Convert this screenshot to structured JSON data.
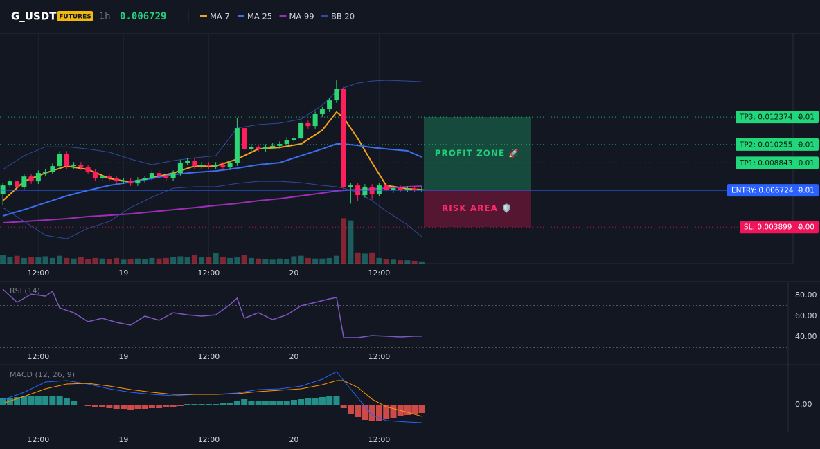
{
  "header": {
    "symbol": "G_USDT",
    "badge": "FUTURES",
    "interval": "1h",
    "price": "0.006729"
  },
  "chart_data": [
    {
      "type": "candlestick",
      "xlim": [
        -0.4,
        111.3
      ],
      "ylim": [
        0.00109,
        0.01882
      ],
      "xticks": [
        {
          "value": 5,
          "label": "12:00"
        },
        {
          "value": 17,
          "label": "19"
        },
        {
          "value": 29,
          "label": "12:00"
        },
        {
          "value": 41,
          "label": "20"
        },
        {
          "value": 53,
          "label": "12:00"
        }
      ],
      "open": [
        0.00646,
        0.0071,
        0.00742,
        0.007,
        0.00779,
        0.00742,
        0.00806,
        0.00817,
        0.00859,
        0.00955,
        0.00859,
        0.0087,
        0.00849,
        0.00817,
        0.00764,
        0.00779,
        0.00764,
        0.00742,
        0.00745,
        0.00726,
        0.00753,
        0.00764,
        0.00806,
        0.00779,
        0.00764,
        0.00806,
        0.00886,
        0.00902,
        0.00859,
        0.0087,
        0.00859,
        0.0087,
        0.00849,
        0.00881,
        0.01152,
        0.00992,
        0.01008,
        0.00992,
        0.01008,
        0.01015,
        0.0103,
        0.01062,
        0.01072,
        0.0119,
        0.01168,
        0.01259,
        0.01296,
        0.01365,
        0.01456,
        0.007,
        0.0071,
        0.00636,
        0.007,
        0.00646,
        0.0071,
        0.00673,
        0.00689,
        0.00678,
        0.00684,
        0.00678
      ],
      "high": [
        0.0073,
        0.00762,
        0.00762,
        0.00799,
        0.00799,
        0.00826,
        0.00837,
        0.00879,
        0.00975,
        0.00975,
        0.0089,
        0.0089,
        0.00869,
        0.00837,
        0.00799,
        0.00799,
        0.00784,
        0.00765,
        0.00765,
        0.00773,
        0.00784,
        0.00826,
        0.00826,
        0.00799,
        0.00826,
        0.00906,
        0.00922,
        0.00922,
        0.0089,
        0.0089,
        0.0089,
        0.0089,
        0.00901,
        0.01232,
        0.01172,
        0.01028,
        0.01028,
        0.01028,
        0.01035,
        0.0105,
        0.01082,
        0.01092,
        0.0121,
        0.0121,
        0.01279,
        0.01316,
        0.01385,
        0.01525,
        0.01476,
        0.0073,
        0.0073,
        0.0072,
        0.0072,
        0.0073,
        0.0073,
        0.00709,
        0.00709,
        0.00704,
        0.00704,
        0.00701
      ],
      "low": [
        0.0056,
        0.0069,
        0.0068,
        0.0068,
        0.00722,
        0.00722,
        0.00786,
        0.00797,
        0.00839,
        0.00839,
        0.00839,
        0.00829,
        0.00797,
        0.00744,
        0.00744,
        0.00744,
        0.00722,
        0.00722,
        0.00706,
        0.00706,
        0.00733,
        0.00744,
        0.00759,
        0.00744,
        0.00744,
        0.00786,
        0.00866,
        0.00839,
        0.00839,
        0.00839,
        0.00839,
        0.00829,
        0.00829,
        0.00861,
        0.00972,
        0.00972,
        0.00972,
        0.00972,
        0.00988,
        0.00995,
        0.0101,
        0.01042,
        0.01052,
        0.01148,
        0.01148,
        0.01239,
        0.01276,
        0.01345,
        0.0068,
        0.0057,
        0.0059,
        0.00616,
        0.006,
        0.00626,
        0.00653,
        0.00653,
        0.00658,
        0.00658,
        0.00658,
        0.00661
      ],
      "close": [
        0.0071,
        0.00742,
        0.007,
        0.00779,
        0.00742,
        0.00806,
        0.00817,
        0.00859,
        0.00955,
        0.00859,
        0.0087,
        0.00849,
        0.00817,
        0.00764,
        0.00779,
        0.00764,
        0.00742,
        0.00745,
        0.00726,
        0.00753,
        0.00764,
        0.00806,
        0.00779,
        0.00764,
        0.00806,
        0.00886,
        0.00902,
        0.00859,
        0.0087,
        0.00859,
        0.0087,
        0.00849,
        0.00881,
        0.01152,
        0.00992,
        0.01008,
        0.00992,
        0.01008,
        0.01015,
        0.0103,
        0.01062,
        0.01072,
        0.0119,
        0.01168,
        0.01259,
        0.01296,
        0.01365,
        0.01456,
        0.007,
        0.0071,
        0.00636,
        0.007,
        0.00646,
        0.0071,
        0.00673,
        0.00689,
        0.00678,
        0.00684,
        0.00678,
        0.00681
      ],
      "volume": [
        15,
        12,
        14,
        10,
        12,
        11,
        13,
        10,
        14,
        10,
        9,
        12,
        8,
        10,
        9,
        8,
        10,
        7,
        8,
        9,
        8,
        10,
        9,
        10,
        12,
        13,
        11,
        15,
        11,
        12,
        19,
        12,
        10,
        11,
        15,
        10,
        9,
        8,
        7,
        9,
        8,
        13,
        14,
        10,
        9,
        9,
        10,
        14,
        81,
        77,
        20,
        18,
        20,
        10,
        8,
        7,
        6,
        6,
        5,
        4
      ],
      "volume_lim": [
        0,
        100
      ],
      "up_color": "#26a69a",
      "down_color": "#f23645",
      "series": [
        {
          "name": "MA 7",
          "color": "#f7a21b",
          "x": [
            0,
            3,
            6,
            9,
            12,
            15,
            18,
            21,
            24,
            27,
            30,
            33,
            36,
            39,
            42,
            45,
            47,
            48,
            50,
            52,
            54,
            57,
            59
          ],
          "values": [
            0.00593,
            0.00742,
            0.00806,
            0.00859,
            0.00833,
            0.00764,
            0.00737,
            0.00769,
            0.00806,
            0.00859,
            0.00859,
            0.00913,
            0.00992,
            0.01003,
            0.0103,
            0.01136,
            0.01275,
            0.01232,
            0.01072,
            0.00886,
            0.0071,
            0.00684,
            0.00678
          ]
        },
        {
          "name": "MA 25",
          "color": "#3a6ff0",
          "x": [
            0,
            3,
            6,
            9,
            12,
            15,
            18,
            21,
            24,
            27,
            30,
            33,
            36,
            39,
            42,
            45,
            47,
            48,
            50,
            52,
            54,
            57,
            59
          ],
          "values": [
            0.00476,
            0.00524,
            0.00577,
            0.0063,
            0.00673,
            0.0071,
            0.00737,
            0.00764,
            0.00795,
            0.00811,
            0.00822,
            0.00843,
            0.0087,
            0.00886,
            0.00939,
            0.00992,
            0.0103,
            0.0103,
            0.01019,
            0.01003,
            0.00992,
            0.00977,
            0.00929
          ]
        },
        {
          "name": "MA 99",
          "color": "#9c2fb5",
          "x": [
            0,
            3,
            6,
            9,
            12,
            15,
            18,
            21,
            24,
            27,
            30,
            33,
            36,
            39,
            42,
            45,
            47,
            48,
            50,
            52,
            54,
            57,
            59
          ],
          "values": [
            0.00423,
            0.00433,
            0.00444,
            0.00455,
            0.00471,
            0.00481,
            0.00492,
            0.00508,
            0.00524,
            0.0054,
            0.00556,
            0.00572,
            0.00593,
            0.00609,
            0.0063,
            0.00652,
            0.00668,
            0.00673,
            0.00678,
            0.00684,
            0.00689,
            0.007,
            0.00705
          ]
        },
        {
          "name": "BB 20",
          "color": "#2f4a9e",
          "x": [
            0,
            3,
            6,
            9,
            12,
            15,
            18,
            21,
            24,
            27,
            30,
            33,
            36,
            39,
            42,
            45,
            47,
            48,
            50,
            52,
            54,
            57,
            59
          ],
          "upper": [
            0.00833,
            0.00939,
            0.01008,
            0.01008,
            0.00992,
            0.00966,
            0.00913,
            0.0087,
            0.00902,
            0.00923,
            0.00939,
            0.01152,
            0.01179,
            0.0119,
            0.01221,
            0.01328,
            0.01434,
            0.01461,
            0.01498,
            0.01514,
            0.0152,
            0.01514,
            0.01509
          ],
          "lower": [
            0.00541,
            0.00433,
            0.00327,
            0.003,
            0.0038,
            0.00433,
            0.00541,
            0.0062,
            0.00689,
            0.007,
            0.007,
            0.00726,
            0.00742,
            0.00742,
            0.00732,
            0.0071,
            0.007,
            0.00689,
            0.00657,
            0.00593,
            0.00513,
            0.00407,
            0.00316
          ]
        }
      ],
      "levels": [
        {
          "label": "TP3: 0.012374",
          "value": 0.012374,
          "qty": "0.01",
          "color": "#22d67a"
        },
        {
          "label": "TP2: 0.010255",
          "value": 0.010255,
          "qty": "0.01",
          "color": "#22d67a"
        },
        {
          "label": "TP1: 0.008843",
          "value": 0.008843,
          "qty": "0.01",
          "color": "#22d67a"
        },
        {
          "label": "ENTRY: 0.006724",
          "value": 0.006724,
          "qty": "0.01",
          "color": "#2962ff"
        },
        {
          "label": "SL: 0.003899",
          "value": 0.003899,
          "qty": "0.00",
          "color": "#f0145a"
        }
      ],
      "zones": [
        {
          "label": "PROFIT ZONE 🚀",
          "color": "#1fbf7a"
        },
        {
          "label": "RISK AREA 🛡️",
          "color": "#f0145a"
        }
      ]
    },
    {
      "type": "line",
      "title": "RSI (14)",
      "xlim": [
        -0.4,
        110.6
      ],
      "ylim": [
        13.33,
        92.67
      ],
      "xticks": [
        {
          "value": 5,
          "label": "12:00"
        },
        {
          "value": 17,
          "label": "19"
        },
        {
          "value": 29,
          "label": "12:00"
        },
        {
          "value": 41,
          "label": "20"
        },
        {
          "value": 53,
          "label": "12:00"
        }
      ],
      "yticks": [
        {
          "value": 80,
          "label": "80.00"
        },
        {
          "value": 60,
          "label": "60.00"
        },
        {
          "value": 40,
          "label": "40.00"
        }
      ],
      "levels": [
        70,
        30
      ],
      "color": "#7e57c2",
      "x": [
        0,
        2,
        4,
        6,
        7,
        8,
        10,
        12,
        14,
        16,
        18,
        20,
        22,
        24,
        26,
        28,
        30,
        32,
        33,
        34,
        36,
        38,
        40,
        42,
        44,
        46,
        47,
        48,
        50,
        52,
        54,
        56,
        58,
        59
      ],
      "values": [
        86,
        73.3,
        81.3,
        79.3,
        84,
        68,
        63.3,
        54.7,
        58,
        54,
        51.3,
        60,
        56,
        63.3,
        61.3,
        60,
        61.3,
        71.3,
        77.3,
        58,
        63.3,
        56.7,
        61.3,
        70,
        73.3,
        76.7,
        78,
        39.3,
        39.3,
        41.3,
        40.7,
        40,
        40.7,
        40.7
      ]
    },
    {
      "type": "macd",
      "title": "MACD (12, 26, 9)",
      "xlim": [
        -0.4,
        110.6
      ],
      "ylim": [
        -0.0004,
        0.00057
      ],
      "xticks": [
        {
          "value": 5,
          "label": "12:00"
        },
        {
          "value": 17,
          "label": "19"
        },
        {
          "value": 29,
          "label": "12:00"
        },
        {
          "value": 41,
          "label": "20"
        },
        {
          "value": 53,
          "label": "12:00"
        }
      ],
      "yticks": [
        {
          "value": 0,
          "label": "0.00"
        }
      ],
      "histogram": [
        0.0001,
        0.0001,
        0.00011,
        0.00012,
        0.00012,
        0.00013,
        0.00013,
        0.00013,
        0.00012,
        0.0001,
        5e-05,
        -1e-05,
        -2e-05,
        -3e-05,
        -4e-05,
        -5e-05,
        -6e-05,
        -6e-05,
        -7e-05,
        -6e-05,
        -6e-05,
        -5e-05,
        -5e-05,
        -4e-05,
        -3e-05,
        -2e-05,
        1e-05,
        1e-05,
        1e-05,
        1e-05,
        1e-05,
        2e-05,
        2e-05,
        5e-05,
        8e-05,
        6e-05,
        5e-05,
        5e-05,
        5e-05,
        5e-05,
        6e-05,
        7e-05,
        8e-05,
        9e-05,
        0.0001,
        0.00011,
        0.00012,
        0.00013,
        -5e-05,
        -0.00013,
        -0.00018,
        -0.00022,
        -0.00023,
        -0.00023,
        -0.00021,
        -0.00019,
        -0.00017,
        -0.00015,
        -0.00013,
        -0.00012
      ],
      "up_color": "#26a69a",
      "down_color": "#ef5350",
      "x": [
        0,
        3,
        6,
        9,
        12,
        15,
        18,
        21,
        24,
        27,
        30,
        33,
        36,
        39,
        42,
        45,
        47,
        48,
        50,
        52,
        54,
        57,
        59
      ],
      "macd": [
        7e-05,
        0.00018,
        0.00033,
        0.00035,
        0.0003,
        0.00023,
        0.00018,
        0.00015,
        0.00013,
        0.00015,
        0.00015,
        0.00017,
        0.00022,
        0.00023,
        0.00027,
        0.00037,
        0.00048,
        0.00035,
        0.0001,
        -0.00015,
        -0.00023,
        -0.00025,
        -0.00026
      ],
      "signal": [
        2e-05,
        0.00012,
        0.00023,
        0.0003,
        0.00031,
        0.00027,
        0.00022,
        0.00018,
        0.00015,
        0.00015,
        0.00015,
        0.00016,
        0.00019,
        0.00021,
        0.00023,
        0.00029,
        0.00035,
        0.00035,
        0.00025,
        8e-05,
        -3e-05,
        -0.00011,
        -0.00017
      ],
      "macd_color": "#2962ff",
      "signal_color": "#ff9800"
    }
  ]
}
